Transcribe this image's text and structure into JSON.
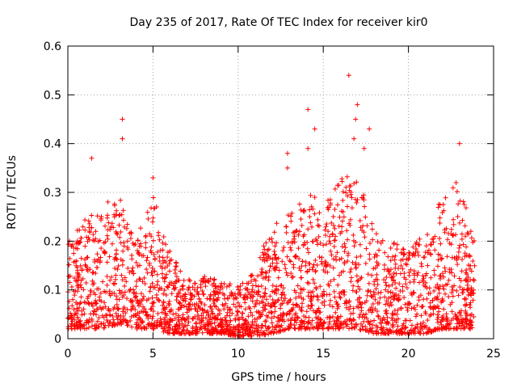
{
  "chart_data": {
    "type": "scatter",
    "title": "Day 235 of 2017, Rate Of TEC Index for receiver kir0",
    "xlabel": "GPS time / hours",
    "ylabel": "ROTI / TECUs",
    "xlim": [
      0,
      25
    ],
    "ylim": [
      0,
      0.6
    ],
    "xticks": [
      0,
      5,
      10,
      15,
      20,
      25
    ],
    "xtick_labels": [
      "0",
      "5",
      "10",
      "15",
      "20",
      "25"
    ],
    "yticks": [
      0,
      0.1,
      0.2,
      0.3,
      0.4,
      0.5,
      0.6
    ],
    "ytick_labels": [
      "0",
      "0.1",
      "0.2",
      "0.3",
      "0.4",
      "0.5",
      "0.6"
    ],
    "grid": true,
    "marker": "+",
    "marker_color": "#ff0000",
    "data_x_range_hours": [
      0,
      23.9
    ],
    "notable_points": [
      {
        "x": 3.2,
        "y": 0.45
      },
      {
        "x": 3.2,
        "y": 0.41
      },
      {
        "x": 1.4,
        "y": 0.37
      },
      {
        "x": 5.0,
        "y": 0.33
      },
      {
        "x": 12.9,
        "y": 0.38
      },
      {
        "x": 12.9,
        "y": 0.35
      },
      {
        "x": 14.1,
        "y": 0.47
      },
      {
        "x": 14.5,
        "y": 0.43
      },
      {
        "x": 14.1,
        "y": 0.39
      },
      {
        "x": 16.5,
        "y": 0.54
      },
      {
        "x": 17.0,
        "y": 0.48
      },
      {
        "x": 16.9,
        "y": 0.45
      },
      {
        "x": 16.8,
        "y": 0.41
      },
      {
        "x": 17.7,
        "y": 0.43
      },
      {
        "x": 17.4,
        "y": 0.39
      },
      {
        "x": 23.0,
        "y": 0.4
      },
      {
        "x": 22.8,
        "y": 0.32
      }
    ],
    "envelope": {
      "description": "dense scatter; per-hour approximate baseline (lower) and typical upper values of ROTI",
      "hours": [
        0,
        1,
        2,
        3,
        4,
        5,
        6,
        7,
        8,
        9,
        10,
        11,
        12,
        13,
        14,
        15,
        16,
        17,
        18,
        19,
        20,
        21,
        22,
        23,
        23.9
      ],
      "lower": [
        0.02,
        0.02,
        0.02,
        0.03,
        0.02,
        0.02,
        0.01,
        0.01,
        0.01,
        0.01,
        0.005,
        0.005,
        0.01,
        0.02,
        0.02,
        0.02,
        0.02,
        0.02,
        0.01,
        0.01,
        0.01,
        0.01,
        0.02,
        0.02,
        0.02
      ],
      "upper": [
        0.2,
        0.25,
        0.27,
        0.3,
        0.2,
        0.3,
        0.18,
        0.12,
        0.13,
        0.12,
        0.11,
        0.14,
        0.24,
        0.26,
        0.3,
        0.28,
        0.33,
        0.35,
        0.22,
        0.2,
        0.18,
        0.22,
        0.3,
        0.32,
        0.2
      ]
    }
  }
}
